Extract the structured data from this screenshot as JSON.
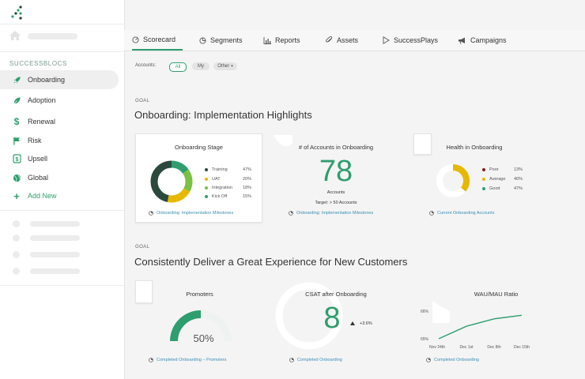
{
  "sidebar": {
    "section_title": "SUCCESSBLOCS",
    "items": [
      {
        "label": "Onboarding",
        "icon": "rocket-icon"
      },
      {
        "label": "Adoption",
        "icon": "leaf-icon"
      },
      {
        "label": "Renewal",
        "icon": "dollar-icon"
      },
      {
        "label": "Risk",
        "icon": "flag-icon"
      },
      {
        "label": "Upsell",
        "icon": "dollar-box-icon"
      },
      {
        "label": "Global",
        "icon": "globe-icon"
      },
      {
        "label": "Add New",
        "icon": "plus-icon"
      }
    ]
  },
  "tabs": [
    {
      "label": "Scorecard",
      "icon": "gauge-icon"
    },
    {
      "label": "Segments",
      "icon": "pie-icon"
    },
    {
      "label": "Reports",
      "icon": "bar-chart-icon"
    },
    {
      "label": "Assets",
      "icon": "paperclip-icon"
    },
    {
      "label": "SuccessPlays",
      "icon": "play-icon"
    },
    {
      "label": "Campaigns",
      "icon": "megaphone-icon"
    }
  ],
  "filter": {
    "label": "Accounts:",
    "options": [
      "All",
      "My",
      "Other"
    ],
    "other_caret": "▾"
  },
  "goal1": {
    "tag": "GOAL",
    "title": "Onboarding: Implementation Highlights",
    "stage_card": {
      "title": "Onboarding Stage",
      "legend": [
        {
          "label": "Training",
          "pct": "47%",
          "color": "#2b4a3d"
        },
        {
          "label": "UAT",
          "pct": "20%",
          "color": "#e6b800"
        },
        {
          "label": "Integration",
          "pct": "18%",
          "color": "#7ac143"
        },
        {
          "label": "Kick Off",
          "pct": "15%",
          "color": "#2e9e6e"
        }
      ],
      "link": "Onboarding: Implementation Milestones"
    },
    "accounts_card": {
      "title": "# of Accounts in Onboarding",
      "value": "78",
      "unit": "Accounts",
      "target": "Target: > 50 Accounts",
      "link": "Onboarding: Implementation Milestones"
    },
    "health_card": {
      "title": "Health in Onboarding",
      "legend": [
        {
          "label": "Poor",
          "pct": "13%",
          "color": "#8b1a1a"
        },
        {
          "label": "Average",
          "pct": "40%",
          "color": "#e6b800"
        },
        {
          "label": "Good",
          "pct": "47%",
          "color": "#2e9e6e"
        }
      ],
      "link": "Current Onboarding Accounts"
    }
  },
  "goal2": {
    "tag": "GOAL",
    "title": "Consistently Deliver a Great Experience for New Customers",
    "promoters_card": {
      "title": "Promoters",
      "value": "50%",
      "fraction": 0.5,
      "link": "Completed Onboarding – Promoters"
    },
    "csat_card": {
      "title": "CSAT after Onboarding",
      "value": "8",
      "delta": "+3.6%",
      "link": "Completed Onboarding"
    },
    "wau_card": {
      "title": "WAU/MAU Ratio",
      "link": "Completed Onboarding"
    }
  },
  "chart_data": {
    "type": "line",
    "title": "WAU/MAU Ratio",
    "categories": [
      "Nov 24th",
      "Dec 1st",
      "Dec 8th",
      "Dec 15th"
    ],
    "y_ticks": [
      "65%",
      "66%"
    ],
    "ylim": [
      65,
      66
    ],
    "values": [
      65.0,
      65.45,
      65.72,
      65.85
    ],
    "grid": false
  }
}
